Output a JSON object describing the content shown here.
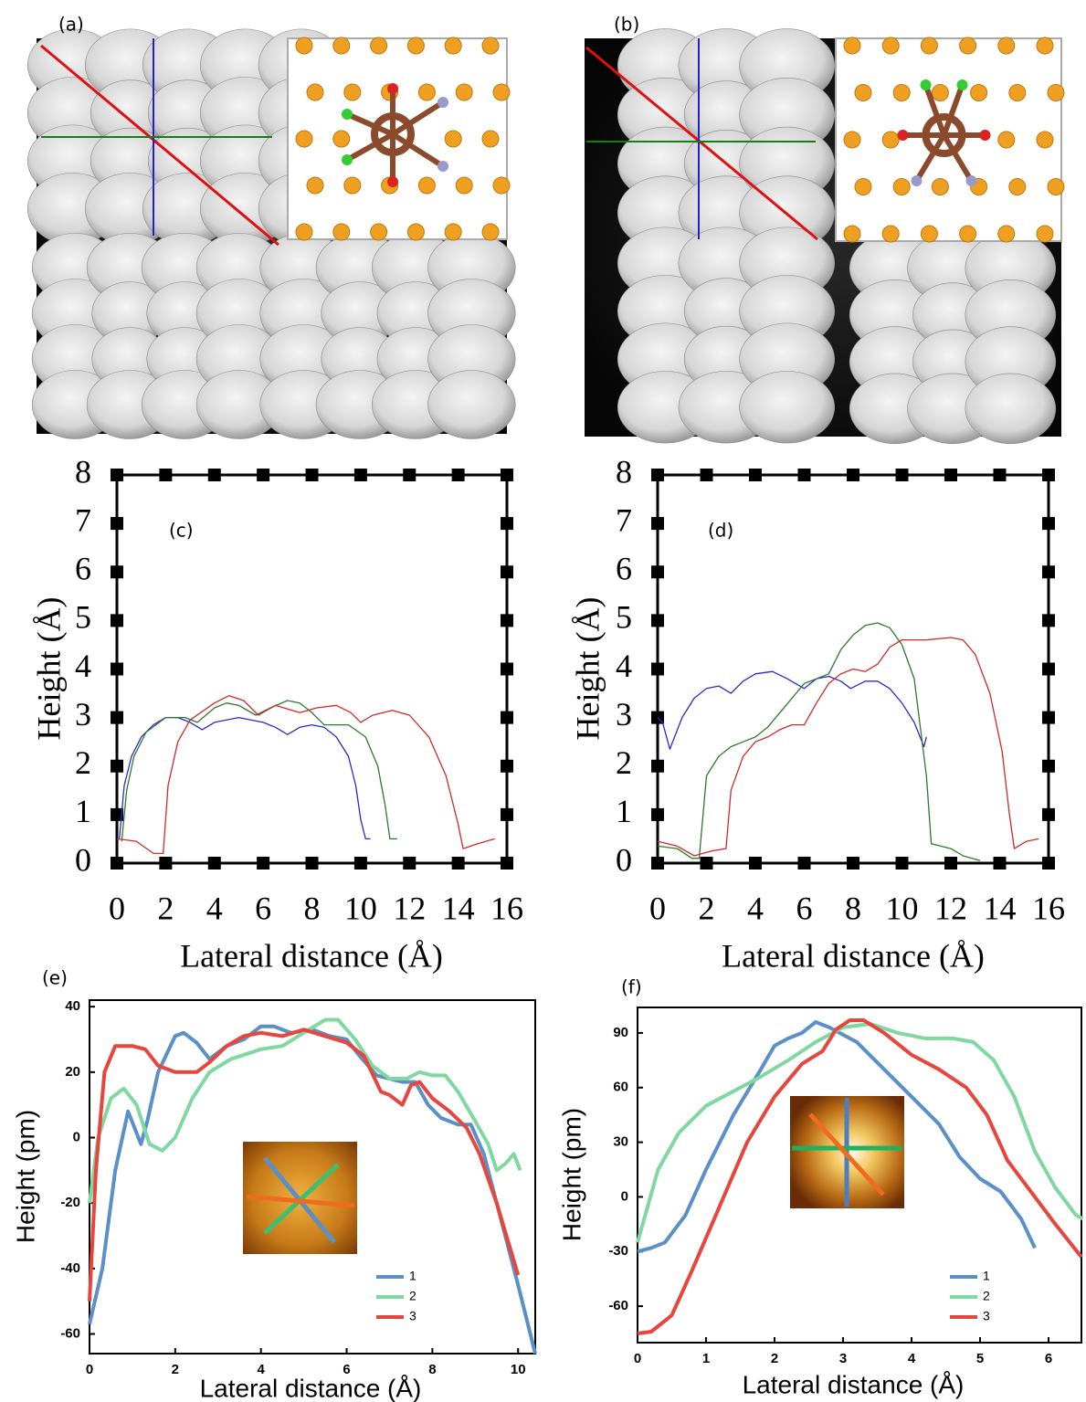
{
  "image_panels": [
    {
      "label": "(a)"
    },
    {
      "label": "(b)"
    }
  ],
  "chart_data": [
    {
      "type": "line",
      "annotation": "(c)",
      "x_label": "Lateral distance (Å)",
      "y_label": "Height (Å)",
      "xlim": [
        0,
        16
      ],
      "ylim": [
        0,
        8
      ],
      "xticks": [
        0,
        2,
        4,
        6,
        8,
        10,
        12,
        14,
        16
      ],
      "yticks": [
        0,
        1,
        2,
        3,
        4,
        5,
        6,
        7,
        8
      ],
      "grid": false,
      "series": [
        {
          "color": "#2a2ad0",
          "x": [
            0.1,
            0.3,
            0.6,
            1,
            1.5,
            2,
            2.5,
            3,
            3.5,
            4,
            5,
            6,
            6.5,
            7,
            7.5,
            8,
            8.5,
            9,
            9.5,
            9.8,
            10,
            10.2,
            10.4
          ],
          "values": [
            0.5,
            1.6,
            2.2,
            2.6,
            2.85,
            3.0,
            3.0,
            2.9,
            2.75,
            2.9,
            3.0,
            2.9,
            2.8,
            2.65,
            2.8,
            2.85,
            2.8,
            2.6,
            2.2,
            1.6,
            0.9,
            0.5,
            0.5
          ]
        },
        {
          "color": "#2d7a2d",
          "x": [
            0.2,
            0.4,
            0.7,
            1.2,
            2,
            2.8,
            3.3,
            4,
            4.5,
            5,
            5.7,
            6.3,
            7,
            7.5,
            8,
            8.5,
            9.5,
            10.2,
            10.7,
            11,
            11.2,
            11.5
          ],
          "values": [
            0.45,
            1.5,
            2.2,
            2.7,
            3.0,
            3.0,
            2.9,
            3.2,
            3.3,
            3.25,
            3.05,
            3.2,
            3.35,
            3.3,
            3.1,
            2.85,
            2.85,
            2.6,
            2.0,
            1.2,
            0.5,
            0.5
          ]
        },
        {
          "color": "#d02a2a",
          "x": [
            0,
            0.8,
            1.5,
            1.9,
            2.1,
            2.5,
            3,
            4,
            4.6,
            5.2,
            5.8,
            6.5,
            7.5,
            8.2,
            9,
            9.6,
            10,
            10.5,
            11.3,
            12,
            12.8,
            13.5,
            14,
            14.2,
            14.8,
            15.5
          ],
          "values": [
            0.5,
            0.45,
            0.2,
            0.2,
            1.6,
            2.5,
            2.95,
            3.3,
            3.45,
            3.35,
            3.05,
            3.25,
            3.1,
            3.2,
            3.25,
            3.1,
            2.9,
            3.05,
            3.15,
            3.05,
            2.6,
            1.8,
            0.8,
            0.3,
            0.4,
            0.5
          ]
        }
      ]
    },
    {
      "type": "line",
      "annotation": "(d)",
      "x_label": "Lateral distance (Å)",
      "y_label": "Height (Å)",
      "xlim": [
        0,
        16
      ],
      "ylim": [
        0,
        8
      ],
      "xticks": [
        0,
        2,
        4,
        6,
        8,
        10,
        12,
        14,
        16
      ],
      "yticks": [
        0,
        1,
        2,
        3,
        4,
        5,
        6,
        7,
        8
      ],
      "grid": false,
      "series": [
        {
          "color": "#2a2ad0",
          "x": [
            0,
            0.2,
            0.5,
            1,
            1.5,
            2,
            2.5,
            3,
            3.5,
            4,
            4.7,
            5.3,
            6,
            6.5,
            7,
            7.5,
            7.9,
            8.5,
            9,
            9.5,
            10,
            10.5,
            10.9,
            11
          ],
          "values": [
            3.0,
            2.9,
            2.35,
            3.0,
            3.4,
            3.6,
            3.65,
            3.5,
            3.75,
            3.9,
            3.95,
            3.8,
            3.6,
            3.8,
            3.85,
            3.75,
            3.6,
            3.75,
            3.75,
            3.6,
            3.3,
            2.9,
            2.4,
            2.6
          ]
        },
        {
          "color": "#2d7a2d",
          "x": [
            0,
            0.8,
            1.4,
            1.7,
            2,
            2.5,
            3,
            3.5,
            4,
            4.5,
            5,
            5.5,
            6,
            7,
            7.5,
            8,
            8.5,
            9,
            9.5,
            10,
            10.5,
            11,
            11.2,
            12,
            12.5,
            13.2
          ],
          "values": [
            0.35,
            0.3,
            0.1,
            0.1,
            1.8,
            2.2,
            2.4,
            2.5,
            2.6,
            2.8,
            3.1,
            3.4,
            3.7,
            3.9,
            4.4,
            4.7,
            4.9,
            4.95,
            4.85,
            4.5,
            3.8,
            1.8,
            0.4,
            0.3,
            0.15,
            0.05
          ]
        },
        {
          "color": "#d02a2a",
          "x": [
            0,
            0.8,
            1.5,
            2.2,
            2.8,
            3,
            3.5,
            4,
            4.5,
            5,
            5.5,
            6,
            6.5,
            7,
            7.5,
            8,
            8.5,
            9,
            9.5,
            10,
            11,
            12,
            12.5,
            13,
            13.6,
            14.1,
            14.4,
            14.6,
            15.1,
            15.6
          ],
          "values": [
            0.45,
            0.35,
            0.15,
            0.25,
            0.3,
            1.5,
            2.2,
            2.5,
            2.6,
            2.75,
            2.85,
            2.85,
            3.3,
            3.7,
            3.9,
            4.0,
            3.95,
            4.1,
            4.45,
            4.6,
            4.6,
            4.65,
            4.6,
            4.3,
            3.5,
            2.3,
            1.0,
            0.3,
            0.45,
            0.5
          ]
        }
      ]
    },
    {
      "type": "line",
      "annotation": "(e)",
      "x_label": "Lateral distance (Å)",
      "y_label": "Height (pm)",
      "xlim": [
        0,
        10.4
      ],
      "ylim": [
        -66,
        42
      ],
      "xticks": [
        0,
        2,
        4,
        6,
        8,
        10
      ],
      "yticks": [
        -60,
        -40,
        -20,
        0,
        20,
        40
      ],
      "grid": false,
      "legend": "lower right",
      "series": [
        {
          "name": "1",
          "color": "#5b8fc7",
          "x": [
            0,
            0.3,
            0.6,
            0.9,
            1.05,
            1.2,
            1.35,
            1.6,
            2,
            2.2,
            2.5,
            2.8,
            3.2,
            3.6,
            4,
            4.3,
            4.7,
            5.2,
            5.6,
            6,
            6.3,
            6.7,
            7,
            7.3,
            7.6,
            7.9,
            8.2,
            8.6,
            8.9,
            9.2,
            9.6,
            10,
            10.4
          ],
          "values": [
            -57,
            -40,
            -10,
            8,
            3,
            -2,
            5,
            20,
            31,
            32,
            29,
            24,
            28,
            30,
            34,
            34,
            32,
            33,
            31,
            30,
            25,
            19,
            18,
            17,
            17,
            10,
            6,
            4,
            4,
            -5,
            -25,
            -45,
            -66
          ]
        },
        {
          "name": "2",
          "color": "#7fd8a0",
          "x": [
            0,
            0.2,
            0.5,
            0.8,
            1.1,
            1.4,
            1.7,
            2,
            2.4,
            2.8,
            3.3,
            4,
            4.5,
            5,
            5.5,
            5.8,
            6.2,
            6.6,
            7,
            7.4,
            7.7,
            8,
            8.3,
            8.6,
            9,
            9.3,
            9.5,
            9.7,
            9.9,
            10.05
          ],
          "values": [
            -20,
            0,
            12,
            15,
            10,
            -2,
            -4,
            0,
            12,
            20,
            24,
            27,
            28,
            32,
            36,
            36,
            30,
            22,
            18,
            18,
            20,
            19,
            19,
            14,
            5,
            -2,
            -10,
            -8,
            -5,
            -10
          ]
        },
        {
          "name": "3",
          "color": "#e8453c",
          "x": [
            0,
            0.15,
            0.35,
            0.6,
            1,
            1.3,
            1.6,
            2,
            2.5,
            2.8,
            3.2,
            3.6,
            4,
            4.5,
            5,
            5.5,
            6,
            6.4,
            6.8,
            7,
            7.3,
            7.5,
            7.7,
            8,
            8.4,
            8.8,
            9.1,
            9.5,
            10
          ],
          "values": [
            -50,
            -10,
            20,
            28,
            28,
            27,
            22,
            20,
            20,
            23,
            28,
            31,
            32,
            31,
            33,
            31,
            29,
            25,
            14,
            13,
            10,
            16,
            17,
            12,
            8,
            3,
            -5,
            -20,
            -42
          ]
        }
      ]
    },
    {
      "type": "line",
      "annotation": "(f)",
      "x_label": "Lateral distance (Å)",
      "y_label": "Height (pm)",
      "xlim": [
        0,
        6.48
      ],
      "ylim": [
        -80,
        104
      ],
      "xticks": [
        0,
        1,
        2,
        3,
        4,
        5,
        6
      ],
      "yticks": [
        -60,
        -30,
        0,
        30,
        60,
        90
      ],
      "grid": false,
      "legend": "lower right",
      "series": [
        {
          "name": "1",
          "color": "#5b8fc7",
          "x": [
            0,
            0.2,
            0.4,
            0.7,
            1,
            1.4,
            1.8,
            2,
            2.2,
            2.4,
            2.6,
            2.8,
            3.2,
            3.6,
            4,
            4.4,
            4.7,
            5,
            5.3,
            5.6,
            5.8
          ],
          "values": [
            -30,
            -28,
            -25,
            -10,
            15,
            45,
            70,
            83,
            87,
            90,
            96,
            93,
            85,
            70,
            55,
            40,
            22,
            10,
            3,
            -12,
            -28
          ]
        },
        {
          "name": "2",
          "color": "#7fd8a0",
          "x": [
            0,
            0.3,
            0.6,
            1,
            1.4,
            1.8,
            2.2,
            2.6,
            3,
            3.4,
            3.8,
            4.2,
            4.6,
            4.9,
            5.2,
            5.5,
            5.8,
            6.1,
            6.4,
            6.5
          ],
          "values": [
            -25,
            15,
            35,
            50,
            58,
            66,
            75,
            85,
            93,
            95,
            90,
            87,
            87,
            85,
            75,
            55,
            25,
            5,
            -10,
            -12
          ]
        },
        {
          "name": "3",
          "color": "#e8453c",
          "x": [
            0,
            0.2,
            0.5,
            0.8,
            1.2,
            1.6,
            2,
            2.4,
            2.7,
            2.9,
            3.1,
            3.3,
            3.6,
            4,
            4.4,
            4.8,
            5.1,
            5.4,
            5.8,
            6.1,
            6.48
          ],
          "values": [
            -75,
            -74,
            -65,
            -40,
            -5,
            30,
            55,
            73,
            80,
            92,
            97,
            97,
            90,
            78,
            70,
            60,
            45,
            20,
            0,
            -15,
            -33
          ]
        }
      ]
    }
  ]
}
